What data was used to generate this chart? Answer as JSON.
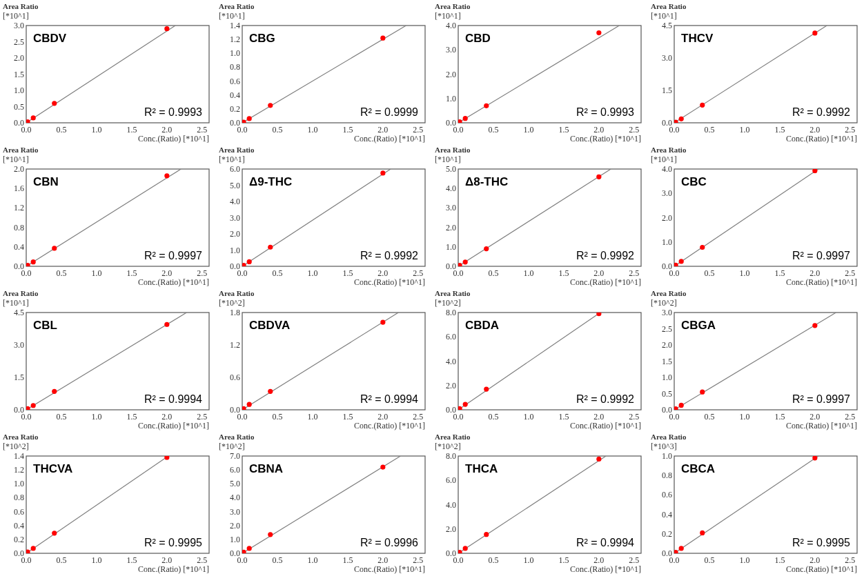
{
  "chart_data": [
    {
      "type": "scatter",
      "title": "CBDV",
      "xlabel": "Conc.(Ratio) [*10^1]",
      "ylabel": "Area Ratio [*10^1]",
      "annotations": [
        "R² = 0.9993"
      ],
      "xlim": [
        0,
        2.6
      ],
      "xticks": [
        {
          "value": 0,
          "label": "0.0"
        },
        0.5,
        {
          "value": 1,
          "label": "1.0"
        },
        1.5,
        {
          "value": 2,
          "label": "2.0"
        },
        2.5
      ],
      "ylim": [
        0,
        3
      ],
      "yticks": [
        {
          "value": 0,
          "label": "0.0"
        },
        0.5,
        {
          "value": 1,
          "label": "1.0"
        },
        1.5,
        {
          "value": 2,
          "label": "2.0"
        },
        2.5,
        {
          "value": 3,
          "label": "3.0"
        }
      ],
      "series": [
        {
          "marker": "circle",
          "color": "#ff0000",
          "x": [
            0.02,
            0.1,
            0.4,
            2.0
          ],
          "values": [
            0.03,
            0.15,
            0.6,
            2.9
          ]
        },
        {
          "type": "line",
          "color": "#7f7f7f",
          "x": [
            0,
            2.12
          ],
          "values": [
            0,
            3.0
          ]
        }
      ]
    },
    {
      "type": "scatter",
      "title": "CBG",
      "xlabel": "Conc.(Ratio) [*10^1]",
      "ylabel": "Area Ratio [*10^1]",
      "annotations": [
        "R² = 0.9999"
      ],
      "xlim": [
        0,
        2.6
      ],
      "xticks": [
        {
          "value": 0,
          "label": "0.0"
        },
        0.5,
        {
          "value": 1,
          "label": "1.0"
        },
        1.5,
        {
          "value": 2,
          "label": "2.0"
        },
        2.5
      ],
      "ylim": [
        0,
        1.4
      ],
      "yticks": [
        {
          "value": 0,
          "label": "0.0"
        },
        0.2,
        0.4,
        0.6,
        0.8,
        {
          "value": 1,
          "label": "1.0"
        },
        1.2,
        1.4
      ],
      "series": [
        {
          "marker": "circle",
          "color": "#ff0000",
          "x": [
            0.02,
            0.1,
            0.4,
            2.0
          ],
          "values": [
            0.01,
            0.06,
            0.25,
            1.22
          ]
        },
        {
          "type": "line",
          "color": "#7f7f7f",
          "x": [
            0,
            2.33
          ],
          "values": [
            0,
            1.4
          ]
        }
      ]
    },
    {
      "type": "scatter",
      "title": "CBD",
      "xlabel": "Conc.(Ratio) [*10^1]",
      "ylabel": "Area Ratio [*10^1]",
      "annotations": [
        "R² = 0.9993"
      ],
      "xlim": [
        0,
        2.6
      ],
      "xticks": [
        {
          "value": 0,
          "label": "0.0"
        },
        0.5,
        {
          "value": 1,
          "label": "1.0"
        },
        1.5,
        {
          "value": 2,
          "label": "2.0"
        },
        2.5
      ],
      "ylim": [
        0,
        4
      ],
      "yticks": [
        {
          "value": 0,
          "label": "0.0"
        },
        {
          "value": 1,
          "label": "1.0"
        },
        {
          "value": 2,
          "label": "2.0"
        },
        {
          "value": 3,
          "label": "3.0"
        },
        {
          "value": 4,
          "label": "4.0"
        }
      ],
      "series": [
        {
          "marker": "circle",
          "color": "#ff0000",
          "x": [
            0.02,
            0.1,
            0.4,
            2.0
          ],
          "values": [
            0.04,
            0.18,
            0.7,
            3.7
          ]
        },
        {
          "type": "line",
          "color": "#7f7f7f",
          "x": [
            0,
            2.29
          ],
          "values": [
            0,
            4.0
          ]
        }
      ]
    },
    {
      "type": "scatter",
      "title": "THCV",
      "xlabel": "Conc.(Ratio) [*10^1]",
      "ylabel": "Area Ratio [*10^1]",
      "annotations": [
        "R² = 0.9992"
      ],
      "xlim": [
        0,
        2.6
      ],
      "xticks": [
        {
          "value": 0,
          "label": "0.0"
        },
        0.5,
        {
          "value": 1,
          "label": "1.0"
        },
        1.5,
        {
          "value": 2,
          "label": "2.0"
        },
        2.5
      ],
      "ylim": [
        0,
        4.5
      ],
      "yticks": [
        {
          "value": 0,
          "label": "0.0"
        },
        1.5,
        {
          "value": 3,
          "label": "3.0"
        },
        4.5
      ],
      "series": [
        {
          "marker": "circle",
          "color": "#ff0000",
          "x": [
            0.02,
            0.1,
            0.4,
            2.0
          ],
          "values": [
            0.03,
            0.18,
            0.82,
            4.15
          ]
        },
        {
          "type": "line",
          "color": "#7f7f7f",
          "x": [
            0,
            2.17
          ],
          "values": [
            0,
            4.5
          ]
        }
      ]
    },
    {
      "type": "scatter",
      "title": "CBN",
      "xlabel": "Conc.(Ratio) [*10^1]",
      "ylabel": "Area Ratio [*10^1]",
      "annotations": [
        "R² = 0.9997"
      ],
      "xlim": [
        0,
        2.6
      ],
      "xticks": [
        {
          "value": 0,
          "label": "0.0"
        },
        0.5,
        {
          "value": 1,
          "label": "1.0"
        },
        1.5,
        {
          "value": 2,
          "label": "2.0"
        },
        2.5
      ],
      "ylim": [
        0,
        2
      ],
      "yticks": [
        {
          "value": 0,
          "label": "0.0"
        },
        0.4,
        0.8,
        1.2,
        1.6,
        {
          "value": 2,
          "label": "2.0"
        }
      ],
      "series": [
        {
          "marker": "circle",
          "color": "#ff0000",
          "x": [
            0.02,
            0.1,
            0.4,
            2.0
          ],
          "values": [
            0.02,
            0.09,
            0.37,
            1.86
          ]
        },
        {
          "type": "line",
          "color": "#7f7f7f",
          "x": [
            0,
            2.2
          ],
          "values": [
            0,
            2.0
          ]
        }
      ]
    },
    {
      "type": "scatter",
      "title": "Δ9-THC",
      "xlabel": "Conc.(Ratio) [*10^1]",
      "ylabel": "Area Ratio [*10^1]",
      "annotations": [
        "R² = 0.9992"
      ],
      "xlim": [
        0,
        2.6
      ],
      "xticks": [
        {
          "value": 0,
          "label": "0.0"
        },
        0.5,
        {
          "value": 1,
          "label": "1.0"
        },
        1.5,
        {
          "value": 2,
          "label": "2.0"
        },
        2.5
      ],
      "ylim": [
        0,
        6
      ],
      "yticks": [
        {
          "value": 0,
          "label": "0.0"
        },
        {
          "value": 1,
          "label": "1.0"
        },
        {
          "value": 2,
          "label": "2.0"
        },
        {
          "value": 3,
          "label": "3.0"
        },
        {
          "value": 4,
          "label": "4.0"
        },
        {
          "value": 5,
          "label": "5.0"
        },
        {
          "value": 6,
          "label": "6.0"
        }
      ],
      "series": [
        {
          "marker": "circle",
          "color": "#ff0000",
          "x": [
            0.02,
            0.1,
            0.4,
            2.0
          ],
          "values": [
            0.06,
            0.28,
            1.18,
            5.75
          ]
        },
        {
          "type": "line",
          "color": "#7f7f7f",
          "x": [
            0,
            2.11
          ],
          "values": [
            0,
            6.0
          ]
        }
      ]
    },
    {
      "type": "scatter",
      "title": "Δ8-THC",
      "xlabel": "Conc.(Ratio) [*10^1]",
      "ylabel": "Area Ratio [*10^1]",
      "annotations": [
        "R² = 0.9992"
      ],
      "xlim": [
        0,
        2.6
      ],
      "xticks": [
        {
          "value": 0,
          "label": "0.0"
        },
        0.5,
        {
          "value": 1,
          "label": "1.0"
        },
        1.5,
        {
          "value": 2,
          "label": "2.0"
        },
        2.5
      ],
      "ylim": [
        0,
        5
      ],
      "yticks": [
        {
          "value": 0,
          "label": "0.0"
        },
        {
          "value": 1,
          "label": "1.0"
        },
        {
          "value": 2,
          "label": "2.0"
        },
        {
          "value": 3,
          "label": "3.0"
        },
        {
          "value": 4,
          "label": "4.0"
        },
        {
          "value": 5,
          "label": "5.0"
        }
      ],
      "series": [
        {
          "marker": "circle",
          "color": "#ff0000",
          "x": [
            0.02,
            0.1,
            0.4,
            2.0
          ],
          "values": [
            0.05,
            0.22,
            0.9,
            4.6
          ]
        },
        {
          "type": "line",
          "color": "#7f7f7f",
          "x": [
            0,
            2.17
          ],
          "values": [
            0,
            5.0
          ]
        }
      ]
    },
    {
      "type": "scatter",
      "title": "CBC",
      "xlabel": "Conc.(Ratio) [*10^1]",
      "ylabel": "Area Ratio [*10^1]",
      "annotations": [
        "R² = 0.9997"
      ],
      "xlim": [
        0,
        2.6
      ],
      "xticks": [
        {
          "value": 0,
          "label": "0.0"
        },
        0.5,
        {
          "value": 1,
          "label": "1.0"
        },
        1.5,
        {
          "value": 2,
          "label": "2.0"
        },
        2.5
      ],
      "ylim": [
        0,
        4
      ],
      "yticks": [
        {
          "value": 0,
          "label": "0.0"
        },
        {
          "value": 1,
          "label": "1.0"
        },
        {
          "value": 2,
          "label": "2.0"
        },
        {
          "value": 3,
          "label": "3.0"
        },
        {
          "value": 4,
          "label": "4.0"
        }
      ],
      "series": [
        {
          "marker": "circle",
          "color": "#ff0000",
          "x": [
            0.02,
            0.1,
            0.4,
            2.0
          ],
          "values": [
            0.05,
            0.2,
            0.78,
            3.93
          ]
        },
        {
          "type": "line",
          "color": "#7f7f7f",
          "x": [
            0,
            2.05
          ],
          "values": [
            0,
            4.0
          ]
        }
      ]
    },
    {
      "type": "scatter",
      "title": "CBL",
      "xlabel": "Conc.(Ratio) [*10^1]",
      "ylabel": "Area Ratio [*10^1]",
      "annotations": [
        "R² = 0.9994"
      ],
      "xlim": [
        0,
        2.6
      ],
      "xticks": [
        {
          "value": 0,
          "label": "0.0"
        },
        0.5,
        {
          "value": 1,
          "label": "1.0"
        },
        1.5,
        {
          "value": 2,
          "label": "2.0"
        },
        2.5
      ],
      "ylim": [
        0,
        4.5
      ],
      "yticks": [
        {
          "value": 0,
          "label": "0.0"
        },
        1.5,
        {
          "value": 3,
          "label": "3.0"
        },
        4.5
      ],
      "series": [
        {
          "marker": "circle",
          "color": "#ff0000",
          "x": [
            0.02,
            0.1,
            0.4,
            2.0
          ],
          "values": [
            0.05,
            0.2,
            0.85,
            3.95
          ]
        },
        {
          "type": "line",
          "color": "#7f7f7f",
          "x": [
            0,
            2.28
          ],
          "values": [
            0,
            4.5
          ]
        }
      ]
    },
    {
      "type": "scatter",
      "title": "CBDVA",
      "xlabel": "Conc.(Ratio) [*10^1]",
      "ylabel": "Area Ratio [*10^2]",
      "annotations": [
        "R² = 0.9994"
      ],
      "xlim": [
        0,
        2.6
      ],
      "xticks": [
        {
          "value": 0,
          "label": "0.0"
        },
        0.5,
        {
          "value": 1,
          "label": "1.0"
        },
        1.5,
        {
          "value": 2,
          "label": "2.0"
        },
        2.5
      ],
      "ylim": [
        0,
        1.8
      ],
      "yticks": [
        {
          "value": 0,
          "label": "0.0"
        },
        0.6,
        1.2,
        1.8
      ],
      "series": [
        {
          "marker": "circle",
          "color": "#ff0000",
          "x": [
            0.02,
            0.1,
            0.4,
            2.0
          ],
          "values": [
            0.02,
            0.1,
            0.34,
            1.62
          ]
        },
        {
          "type": "line",
          "color": "#7f7f7f",
          "x": [
            0,
            2.22
          ],
          "values": [
            0,
            1.8
          ]
        }
      ]
    },
    {
      "type": "scatter",
      "title": "CBDA",
      "xlabel": "Conc.(Ratio) [*10^1]",
      "ylabel": "Area Ratio [*10^2]",
      "annotations": [
        "R² = 0.9992"
      ],
      "xlim": [
        0,
        2.6
      ],
      "xticks": [
        {
          "value": 0,
          "label": "0.0"
        },
        0.5,
        {
          "value": 1,
          "label": "1.0"
        },
        1.5,
        {
          "value": 2,
          "label": "2.0"
        },
        2.5
      ],
      "ylim": [
        0,
        8
      ],
      "yticks": [
        {
          "value": 0,
          "label": "0.0"
        },
        {
          "value": 2,
          "label": "2.0"
        },
        {
          "value": 4,
          "label": "4.0"
        },
        {
          "value": 6,
          "label": "6.0"
        },
        {
          "value": 8,
          "label": "8.0"
        }
      ],
      "series": [
        {
          "marker": "circle",
          "color": "#ff0000",
          "x": [
            0.02,
            0.1,
            0.4,
            2.0
          ],
          "values": [
            0.1,
            0.45,
            1.7,
            7.9
          ]
        },
        {
          "type": "line",
          "color": "#7f7f7f",
          "x": [
            0,
            2.02
          ],
          "values": [
            0,
            8.0
          ]
        }
      ]
    },
    {
      "type": "scatter",
      "title": "CBGA",
      "xlabel": "Conc.(Ratio) [*10^1]",
      "ylabel": "Area Ratio [*10^2]",
      "annotations": [
        "R² = 0.9997"
      ],
      "xlim": [
        0,
        2.6
      ],
      "xticks": [
        {
          "value": 0,
          "label": "0.0"
        },
        0.5,
        {
          "value": 1,
          "label": "1.0"
        },
        1.5,
        {
          "value": 2,
          "label": "2.0"
        },
        2.5
      ],
      "ylim": [
        0,
        3
      ],
      "yticks": [
        {
          "value": 0,
          "label": "0.0"
        },
        0.5,
        {
          "value": 1,
          "label": "1.0"
        },
        1.5,
        {
          "value": 2,
          "label": "2.0"
        },
        2.5,
        {
          "value": 3,
          "label": "3.0"
        }
      ],
      "series": [
        {
          "marker": "circle",
          "color": "#ff0000",
          "x": [
            0.02,
            0.1,
            0.4,
            2.0
          ],
          "values": [
            0.03,
            0.14,
            0.55,
            2.6
          ]
        },
        {
          "type": "line",
          "color": "#7f7f7f",
          "x": [
            0,
            2.3
          ],
          "values": [
            0,
            3.0
          ]
        }
      ]
    },
    {
      "type": "scatter",
      "title": "THCVA",
      "xlabel": "Conc.(Ratio) [*10^1]",
      "ylabel": "Area Ratio [*10^2]",
      "annotations": [
        "R² = 0.9995"
      ],
      "xlim": [
        0,
        2.6
      ],
      "xticks": [
        {
          "value": 0,
          "label": "0.0"
        },
        0.5,
        {
          "value": 1,
          "label": "1.0"
        },
        1.5,
        {
          "value": 2,
          "label": "2.0"
        },
        2.5
      ],
      "ylim": [
        0,
        1.4
      ],
      "yticks": [
        {
          "value": 0,
          "label": "0.0"
        },
        0.2,
        0.4,
        0.6,
        0.8,
        {
          "value": 1,
          "label": "1.0"
        },
        1.2,
        1.4
      ],
      "series": [
        {
          "marker": "circle",
          "color": "#ff0000",
          "x": [
            0.02,
            0.1,
            0.4,
            2.0
          ],
          "values": [
            0.02,
            0.07,
            0.29,
            1.38
          ]
        },
        {
          "type": "line",
          "color": "#7f7f7f",
          "x": [
            0,
            2.02
          ],
          "values": [
            0,
            1.4
          ]
        }
      ]
    },
    {
      "type": "scatter",
      "title": "CBNA",
      "xlabel": "Conc.(Ratio) [*10^1]",
      "ylabel": "Area Ratio [*10^2]",
      "annotations": [
        "R² = 0.9996"
      ],
      "xlim": [
        0,
        2.6
      ],
      "xticks": [
        {
          "value": 0,
          "label": "0.0"
        },
        0.5,
        {
          "value": 1,
          "label": "1.0"
        },
        1.5,
        {
          "value": 2,
          "label": "2.0"
        },
        2.5
      ],
      "ylim": [
        0,
        7
      ],
      "yticks": [
        {
          "value": 0,
          "label": "0.0"
        },
        {
          "value": 1,
          "label": "1.0"
        },
        {
          "value": 2,
          "label": "2.0"
        },
        {
          "value": 3,
          "label": "3.0"
        },
        {
          "value": 4,
          "label": "4.0"
        },
        {
          "value": 5,
          "label": "5.0"
        },
        {
          "value": 6,
          "label": "6.0"
        },
        {
          "value": 7,
          "label": "7.0"
        }
      ],
      "series": [
        {
          "marker": "circle",
          "color": "#ff0000",
          "x": [
            0.02,
            0.1,
            0.4,
            2.0
          ],
          "values": [
            0.08,
            0.35,
            1.35,
            6.2
          ]
        },
        {
          "type": "line",
          "color": "#7f7f7f",
          "x": [
            0,
            2.25
          ],
          "values": [
            0,
            7.0
          ]
        }
      ]
    },
    {
      "type": "scatter",
      "title": "THCA",
      "xlabel": "Conc.(Ratio) [*10^1]",
      "ylabel": "Area Ratio [*10^2]",
      "annotations": [
        "R² = 0.9994"
      ],
      "xlim": [
        0,
        2.6
      ],
      "xticks": [
        {
          "value": 0,
          "label": "0.0"
        },
        0.5,
        {
          "value": 1,
          "label": "1.0"
        },
        1.5,
        {
          "value": 2,
          "label": "2.0"
        },
        2.5
      ],
      "ylim": [
        0,
        8
      ],
      "yticks": [
        {
          "value": 0,
          "label": "0.0"
        },
        {
          "value": 2,
          "label": "2.0"
        },
        {
          "value": 4,
          "label": "4.0"
        },
        {
          "value": 6,
          "label": "6.0"
        },
        {
          "value": 8,
          "label": "8.0"
        }
      ],
      "series": [
        {
          "marker": "circle",
          "color": "#ff0000",
          "x": [
            0.02,
            0.1,
            0.4,
            2.0
          ],
          "values": [
            0.08,
            0.4,
            1.55,
            7.75
          ]
        },
        {
          "type": "line",
          "color": "#7f7f7f",
          "x": [
            0,
            2.1
          ],
          "values": [
            0,
            8.0
          ]
        }
      ]
    },
    {
      "type": "scatter",
      "title": "CBCA",
      "xlabel": "Conc.(Ratio) [*10^1]",
      "ylabel": "Area Ratio [*10^3]",
      "annotations": [
        "R² = 0.9995"
      ],
      "xlim": [
        0,
        2.6
      ],
      "xticks": [
        {
          "value": 0,
          "label": "0.0"
        },
        0.5,
        {
          "value": 1,
          "label": "1.0"
        },
        1.5,
        {
          "value": 2,
          "label": "2.0"
        },
        2.5
      ],
      "ylim": [
        0,
        1
      ],
      "yticks": [
        {
          "value": 0,
          "label": "0.0"
        },
        0.2,
        0.4,
        0.6,
        0.8,
        {
          "value": 1,
          "label": "1.0"
        }
      ],
      "series": [
        {
          "marker": "circle",
          "color": "#ff0000",
          "x": [
            0.02,
            0.1,
            0.4,
            2.0
          ],
          "values": [
            0.01,
            0.05,
            0.21,
            0.98
          ]
        },
        {
          "type": "line",
          "color": "#7f7f7f",
          "x": [
            0,
            2.05
          ],
          "values": [
            0,
            1.0
          ]
        }
      ]
    }
  ]
}
